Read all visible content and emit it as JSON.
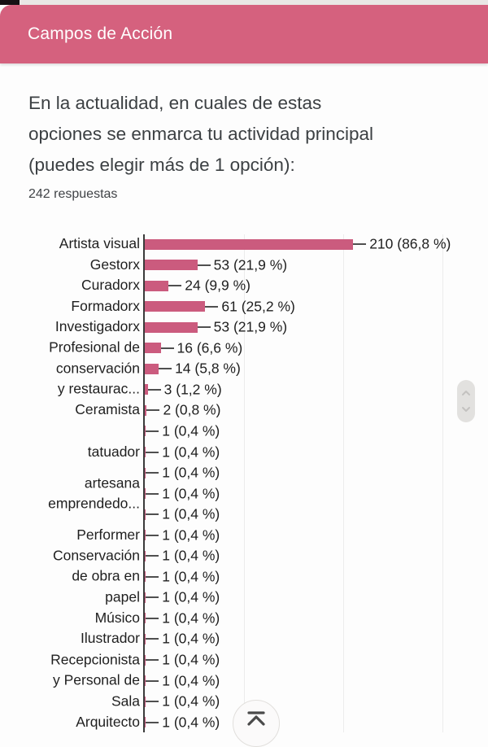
{
  "page": {
    "background": "#fdfdfd",
    "top_strip_color": "#e9e7e5"
  },
  "header": {
    "title": "Campos de Acción",
    "background": "#d5617e",
    "text_color": "#ffffff"
  },
  "question": {
    "lines": [
      "En la actualidad, en cuales de estas",
      "opciones se enmarca tu actividad principal",
      "(puedes elegir más de 1 opción):"
    ],
    "responses_count": "242 respuestas"
  },
  "chart_data": {
    "type": "bar",
    "orientation": "horizontal",
    "title": "",
    "xlabel": "",
    "ylabel": "",
    "xlim": [
      0,
      345
    ],
    "gridlines_x": [
      100,
      200,
      300
    ],
    "grid": true,
    "legend": "none",
    "bar_color": "#cb5b7e",
    "axis_color": "#3b3b3b",
    "value_label_format": "count (percent %)",
    "rows": [
      {
        "label": "Artista visual",
        "value": 210,
        "percent": "86,8",
        "display": "210 (86,8 %)"
      },
      {
        "label": "Gestorx",
        "value": 53,
        "percent": "21,9",
        "display": "53 (21,9 %)"
      },
      {
        "label": "Curadorx",
        "value": 24,
        "percent": "9,9",
        "display": "24 (9,9 %)"
      },
      {
        "label": "Formadorx",
        "value": 61,
        "percent": "25,2",
        "display": "61 (25,2 %)"
      },
      {
        "label": "Investigadorx",
        "value": 53,
        "percent": "21,9",
        "display": "53 (21,9 %)"
      },
      {
        "label": "",
        "value": 16,
        "percent": "6,6",
        "display": "16 (6,6 %)"
      },
      {
        "label": "Profesional de\nconservación\ny restaurac...",
        "value": 14,
        "percent": "5,8",
        "display": "14 (5,8 %)"
      },
      {
        "label": "",
        "value": 3,
        "percent": "1,2",
        "display": "3 (1,2 %)"
      },
      {
        "label": "Ceramista",
        "value": 2,
        "percent": "0,8",
        "display": "2 (0,8 %)"
      },
      {
        "label": "",
        "value": 1,
        "percent": "0,4",
        "display": "1 (0,4 %)"
      },
      {
        "label": "tatuador",
        "value": 1,
        "percent": "0,4",
        "display": "1 (0,4 %)"
      },
      {
        "label": "",
        "value": 1,
        "percent": "0,4",
        "display": "1 (0,4 %)"
      },
      {
        "label": "artesana\nemprendedo...",
        "value": 1,
        "percent": "0,4",
        "display": "1 (0,4 %)"
      },
      {
        "label": "",
        "value": 1,
        "percent": "0,4",
        "display": "1 (0,4 %)"
      },
      {
        "label": "Performer",
        "value": 1,
        "percent": "0,4",
        "display": "1 (0,4 %)"
      },
      {
        "label": "",
        "value": 1,
        "percent": "0,4",
        "display": "1 (0,4 %)"
      },
      {
        "label": "Conservación\nde obra en\npapel",
        "value": 1,
        "percent": "0,4",
        "display": "1 (0,4 %)"
      },
      {
        "label": "",
        "value": 1,
        "percent": "0,4",
        "display": "1 (0,4 %)"
      },
      {
        "label": "Músico",
        "value": 1,
        "percent": "0,4",
        "display": "1 (0,4 %)"
      },
      {
        "label": "Ilustrador",
        "value": 1,
        "percent": "0,4",
        "display": "1 (0,4 %)"
      },
      {
        "label": "",
        "value": 1,
        "percent": "0,4",
        "display": "1 (0,4 %)"
      },
      {
        "label": "Recepcionista\ny Personal de\nSala",
        "value": 1,
        "percent": "0,4",
        "display": "1 (0,4 %)"
      },
      {
        "label": "",
        "value": 1,
        "percent": "0,4",
        "display": "1 (0,4 %)"
      },
      {
        "label": "Arquitecto",
        "value": 1,
        "percent": "0,4",
        "display": "1 (0,4 %)"
      }
    ]
  },
  "widgets": {
    "scroll_pill": {
      "up_icon": "chevron-up",
      "down_icon": "chevron-down"
    },
    "scroll_to_top": {
      "icon": "scroll-to-top"
    }
  }
}
